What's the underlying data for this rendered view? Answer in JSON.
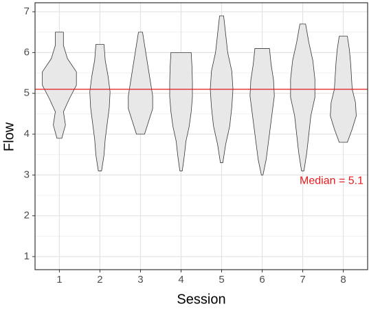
{
  "chart_data": {
    "type": "violin",
    "x_label": "Session",
    "y_label": "Flow",
    "categories": [
      "1",
      "2",
      "3",
      "4",
      "5",
      "6",
      "7",
      "8"
    ],
    "fill": "#e8e8e8",
    "outline": "#333333",
    "violins": [
      {
        "min": 3.9,
        "max": 6.5,
        "density": [
          0.06,
          0.15,
          0.1,
          0.25,
          0.42,
          0.42,
          0.2,
          0.1,
          0.1
        ]
      },
      {
        "min": 3.1,
        "max": 6.2,
        "density": [
          0.04,
          0.1,
          0.13,
          0.18,
          0.23,
          0.25,
          0.2,
          0.13,
          0.1
        ]
      },
      {
        "min": 4.0,
        "max": 6.5,
        "density": [
          0.1,
          0.2,
          0.3,
          0.3,
          0.25,
          0.2,
          0.15,
          0.1,
          0.05
        ]
      },
      {
        "min": 3.1,
        "max": 6.0,
        "density": [
          0.03,
          0.08,
          0.12,
          0.2,
          0.25,
          0.28,
          0.28,
          0.27,
          0.25
        ]
      },
      {
        "min": 3.3,
        "max": 6.9,
        "density": [
          0.03,
          0.1,
          0.2,
          0.25,
          0.28,
          0.25,
          0.15,
          0.1,
          0.05
        ]
      },
      {
        "min": 3.0,
        "max": 6.1,
        "density": [
          0.02,
          0.1,
          0.15,
          0.2,
          0.25,
          0.3,
          0.28,
          0.22,
          0.18
        ]
      },
      {
        "min": 3.1,
        "max": 6.7,
        "density": [
          0.03,
          0.1,
          0.15,
          0.2,
          0.3,
          0.3,
          0.25,
          0.15,
          0.07
        ]
      },
      {
        "min": 3.8,
        "max": 6.4,
        "density": [
          0.1,
          0.22,
          0.32,
          0.3,
          0.22,
          0.2,
          0.18,
          0.15,
          0.1
        ]
      }
    ],
    "median": {
      "value": 5.1,
      "label": "Median = 5.1",
      "color": "#e41a1c"
    },
    "ylim": [
      0.68,
      7.22
    ],
    "yticks": [
      1,
      2,
      3,
      4,
      5,
      6,
      7
    ],
    "minor_yticks": [
      1.5,
      2.5,
      3.5,
      4.5,
      5.5,
      6.5
    ],
    "grid": true
  }
}
